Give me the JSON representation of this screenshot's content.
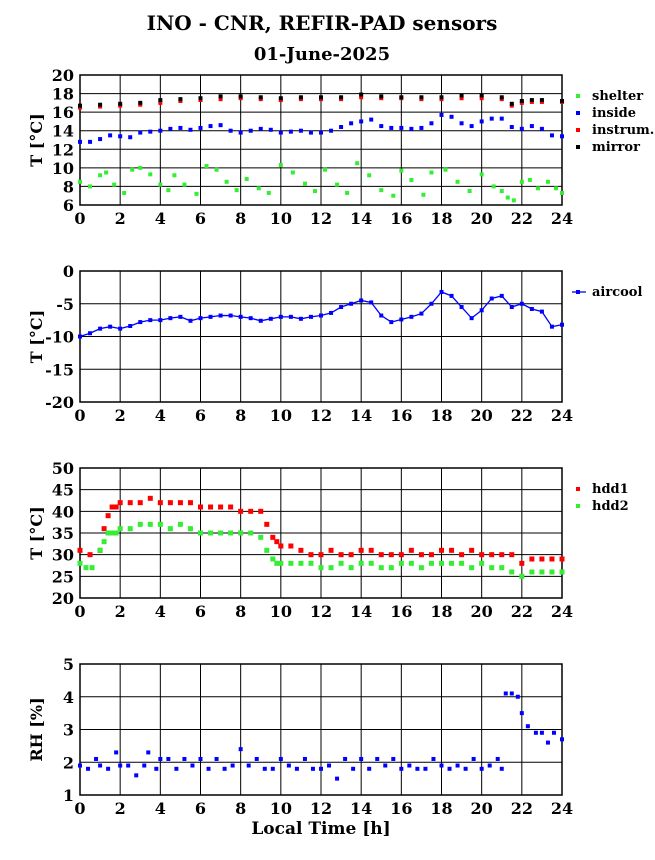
{
  "header": {
    "title": "INO - CNR, REFIR-PAD sensors",
    "subtitle": "01-June-2025"
  },
  "chart_data": [
    {
      "type": "scatter",
      "ylabel": "T [°C]",
      "xlabel": "",
      "xlim": [
        0,
        24
      ],
      "ylim": [
        6,
        20
      ],
      "xticks": [
        "0",
        "2",
        "4",
        "6",
        "8",
        "10",
        "12",
        "14",
        "16",
        "18",
        "20",
        "22",
        "24"
      ],
      "yticks": [
        "6",
        "8",
        "10",
        "12",
        "14",
        "16",
        "18",
        "20"
      ],
      "grid": true,
      "legend": "right",
      "series": [
        {
          "name": "shelter",
          "color": "#33ee33",
          "x": [
            0,
            0.5,
            1,
            1.3,
            1.7,
            2.2,
            2.6,
            3,
            3.5,
            4,
            4.4,
            4.7,
            5.2,
            5.8,
            6.3,
            6.8,
            7.3,
            7.8,
            8.3,
            8.9,
            9.4,
            10,
            10.6,
            11.2,
            11.7,
            12.2,
            12.8,
            13.3,
            13.8,
            14.4,
            15,
            15.6,
            16,
            16.5,
            17.1,
            17.5,
            18.2,
            18.8,
            19.4,
            20,
            20.6,
            21,
            21.3,
            21.6,
            22,
            22.4,
            22.8,
            23.3,
            23.7,
            24
          ],
          "y": [
            8.5,
            8,
            9.2,
            9.5,
            8.2,
            7.3,
            9.8,
            10,
            9.3,
            8.2,
            7.6,
            9.2,
            8.2,
            7.2,
            10.2,
            9.8,
            8.5,
            7.6,
            8.8,
            7.8,
            7.3,
            10.3,
            9.5,
            8.3,
            7.5,
            9.8,
            8.2,
            7.3,
            10.5,
            9.2,
            7.6,
            7,
            9.7,
            8.7,
            7.1,
            9.5,
            9.8,
            8.5,
            7.5,
            9.3,
            8,
            7.5,
            6.8,
            6.5,
            8.5,
            8.7,
            7.8,
            8.5,
            7.8,
            7.3
          ]
        },
        {
          "name": "inside",
          "color": "#0000ff",
          "x": [
            0,
            0.5,
            1,
            1.5,
            2,
            2.5,
            3,
            3.5,
            4,
            4.5,
            5,
            5.5,
            6,
            6.5,
            7,
            7.5,
            8,
            8.5,
            9,
            9.5,
            10,
            10.5,
            11,
            11.5,
            12,
            12.5,
            13,
            13.5,
            14,
            14.5,
            15,
            15.5,
            16,
            16.5,
            17,
            17.5,
            18,
            18.5,
            19,
            19.5,
            20,
            20.5,
            21,
            21.5,
            22,
            22.5,
            23,
            23.5,
            24
          ],
          "y": [
            12.8,
            12.8,
            13.1,
            13.5,
            13.4,
            13.3,
            13.8,
            13.9,
            14,
            14.2,
            14.3,
            14.1,
            14.3,
            14.5,
            14.6,
            14,
            13.8,
            14,
            14.2,
            14.1,
            13.8,
            13.9,
            14,
            13.8,
            13.8,
            14,
            14.4,
            14.8,
            15,
            15.2,
            14.5,
            14.3,
            14.3,
            14.2,
            14.3,
            14.8,
            15.7,
            15.5,
            14.8,
            14.5,
            15,
            15.3,
            15.3,
            14.4,
            14.2,
            14.5,
            14.2,
            13.5,
            13.4
          ]
        },
        {
          "name": "instrum.",
          "color": "#ff0000",
          "x": [
            0,
            1,
            2,
            3,
            4,
            5,
            6,
            7,
            8,
            9,
            10,
            11,
            12,
            13,
            14,
            15,
            16,
            17,
            18,
            19,
            20,
            21,
            21.5,
            22,
            22.5,
            23,
            24
          ],
          "y": [
            16.5,
            16.6,
            16.7,
            16.8,
            17,
            17.2,
            17.3,
            17.4,
            17.5,
            17.4,
            17.3,
            17.4,
            17.4,
            17.4,
            17.6,
            17.5,
            17.5,
            17.4,
            17.4,
            17.5,
            17.5,
            17.4,
            16.7,
            17,
            17.1,
            17.1,
            17.1
          ]
        },
        {
          "name": "mirror",
          "color": "#000000",
          "x": [
            0,
            1,
            2,
            3,
            4,
            5,
            6,
            7,
            8,
            9,
            10,
            11,
            12,
            13,
            14,
            15,
            16,
            17,
            18,
            19,
            20,
            21,
            21.5,
            22,
            22.5,
            23,
            24
          ],
          "y": [
            16.7,
            16.8,
            16.9,
            17,
            17.3,
            17.4,
            17.5,
            17.7,
            17.7,
            17.6,
            17.5,
            17.6,
            17.6,
            17.6,
            17.9,
            17.7,
            17.6,
            17.6,
            17.6,
            17.8,
            17.8,
            17.6,
            16.9,
            17.2,
            17.3,
            17.3,
            17.2
          ]
        }
      ]
    },
    {
      "type": "line",
      "ylabel": "T [°C]",
      "xlabel": "",
      "xlim": [
        0,
        24
      ],
      "ylim": [
        -20,
        0
      ],
      "xticks": [
        "0",
        "2",
        "4",
        "6",
        "8",
        "10",
        "12",
        "14",
        "16",
        "18",
        "20",
        "22",
        "24"
      ],
      "yticks": [
        "-20",
        "-15",
        "-10",
        "-5",
        "0"
      ],
      "grid": true,
      "legend": "right",
      "series": [
        {
          "name": "aircool",
          "color": "#0000ff",
          "x": [
            0,
            0.5,
            1,
            1.5,
            2,
            2.5,
            3,
            3.5,
            4,
            4.5,
            5,
            5.5,
            6,
            6.5,
            7,
            7.5,
            8,
            8.5,
            9,
            9.5,
            10,
            10.5,
            11,
            11.5,
            12,
            12.5,
            13,
            13.5,
            14,
            14.5,
            15,
            15.5,
            16,
            16.5,
            17,
            17.5,
            18,
            18.5,
            19,
            19.5,
            20,
            20.5,
            21,
            21.5,
            22,
            22.5,
            23,
            23.5,
            24
          ],
          "y": [
            -10,
            -9.5,
            -8.8,
            -8.5,
            -8.8,
            -8.4,
            -7.8,
            -7.5,
            -7.5,
            -7.2,
            -7,
            -7.6,
            -7.2,
            -7,
            -6.8,
            -6.8,
            -7,
            -7.2,
            -7.6,
            -7.3,
            -7,
            -7,
            -7.3,
            -7,
            -6.8,
            -6.4,
            -5.5,
            -5,
            -4.5,
            -4.8,
            -6.8,
            -7.8,
            -7.4,
            -7,
            -6.5,
            -5,
            -3.2,
            -3.8,
            -5.5,
            -7.2,
            -6,
            -4.2,
            -3.8,
            -5.5,
            -5,
            -5.8,
            -6.2,
            -8.5,
            -8.2
          ]
        }
      ]
    },
    {
      "type": "scatter",
      "ylabel": "T [°C]",
      "xlabel": "",
      "xlim": [
        0,
        24
      ],
      "ylim": [
        20,
        50
      ],
      "xticks": [
        "0",
        "2",
        "4",
        "6",
        "8",
        "10",
        "12",
        "14",
        "16",
        "18",
        "20",
        "22",
        "24"
      ],
      "yticks": [
        "20",
        "25",
        "30",
        "35",
        "40",
        "45",
        "50"
      ],
      "grid": true,
      "legend": "right",
      "series": [
        {
          "name": "hdd1",
          "color": "#ff0000",
          "x": [
            0,
            0.5,
            1,
            1.2,
            1.4,
            1.6,
            1.8,
            2,
            2.5,
            3,
            3.5,
            4,
            4.5,
            5,
            5.5,
            6,
            6.5,
            7,
            7.5,
            8,
            8.5,
            9,
            9.3,
            9.6,
            9.8,
            10,
            10.5,
            11,
            11.5,
            12,
            12.5,
            13,
            13.5,
            14,
            14.5,
            15,
            15.5,
            16,
            16.5,
            17,
            17.5,
            18,
            18.5,
            19,
            19.5,
            20,
            20.5,
            21,
            21.5,
            22,
            22.5,
            23,
            23.5,
            24
          ],
          "y": [
            31,
            30,
            31,
            36,
            39,
            41,
            41,
            42,
            42,
            42,
            43,
            42,
            42,
            42,
            42,
            41,
            41,
            41,
            41,
            40,
            40,
            40,
            37,
            34,
            33,
            32,
            32,
            31,
            30,
            30,
            31,
            30,
            30,
            31,
            31,
            30,
            30,
            30,
            31,
            30,
            30,
            31,
            31,
            30,
            31,
            30,
            30,
            30,
            30,
            28,
            29,
            29,
            29,
            29
          ]
        },
        {
          "name": "hdd2",
          "color": "#33ee33",
          "x": [
            0,
            0.3,
            0.6,
            1,
            1.2,
            1.4,
            1.6,
            1.8,
            2,
            2.5,
            3,
            3.5,
            4,
            4.5,
            5,
            5.5,
            6,
            6.5,
            7,
            7.5,
            8,
            8.5,
            9,
            9.3,
            9.6,
            9.8,
            10,
            10.5,
            11,
            11.5,
            12,
            12.5,
            13,
            13.5,
            14,
            14.5,
            15,
            15.5,
            16,
            16.5,
            17,
            17.5,
            18,
            18.5,
            19,
            19.5,
            20,
            20.5,
            21,
            21.5,
            22,
            22.5,
            23,
            23.5,
            24
          ],
          "y": [
            28,
            27,
            27,
            31,
            33,
            35,
            35,
            35,
            36,
            36,
            37,
            37,
            37,
            36,
            37,
            36,
            35,
            35,
            35,
            35,
            35,
            35,
            34,
            31,
            29,
            28,
            28,
            28,
            28,
            28,
            27,
            27,
            28,
            27,
            28,
            28,
            27,
            27,
            28,
            28,
            27,
            28,
            28,
            28,
            28,
            27,
            28,
            27,
            27,
            26,
            25,
            26,
            26,
            26,
            26
          ]
        }
      ]
    },
    {
      "type": "scatter",
      "ylabel": "RH [%]",
      "xlabel": "Local Time [h]",
      "xlim": [
        0,
        24
      ],
      "ylim": [
        1,
        5
      ],
      "xticks": [
        "0",
        "2",
        "4",
        "6",
        "8",
        "10",
        "12",
        "14",
        "16",
        "18",
        "20",
        "22",
        "24"
      ],
      "yticks": [
        "1",
        "2",
        "3",
        "4",
        "5"
      ],
      "grid": true,
      "legend": "none",
      "series": [
        {
          "name": "",
          "color": "#0000ff",
          "x": [
            0,
            0.4,
            0.8,
            1,
            1.4,
            1.8,
            2,
            2.4,
            2.8,
            3.2,
            3.4,
            3.8,
            4,
            4.4,
            4.8,
            5.2,
            5.6,
            6,
            6.4,
            6.8,
            7.2,
            7.6,
            8,
            8.4,
            8.8,
            9.2,
            9.6,
            10,
            10.4,
            10.8,
            11.2,
            11.6,
            12,
            12.4,
            12.8,
            13.2,
            13.6,
            14,
            14.4,
            14.8,
            15.2,
            15.6,
            16,
            16.4,
            16.8,
            17.2,
            17.6,
            18,
            18.4,
            18.8,
            19.2,
            19.6,
            20,
            20.4,
            20.8,
            21,
            21.2,
            21.5,
            21.8,
            22,
            22.3,
            22.7,
            23,
            23.3,
            23.6,
            24
          ],
          "y": [
            1.9,
            1.8,
            2.1,
            1.9,
            1.8,
            2.3,
            1.9,
            1.9,
            1.6,
            1.9,
            2.3,
            1.8,
            2.1,
            2.1,
            1.8,
            2.1,
            1.9,
            2.1,
            1.8,
            2.1,
            1.8,
            1.9,
            2.4,
            1.9,
            2.1,
            1.8,
            1.8,
            2.1,
            1.9,
            1.8,
            2.1,
            1.8,
            1.8,
            1.9,
            1.5,
            2.1,
            1.8,
            2.1,
            1.8,
            2.1,
            1.9,
            2.1,
            1.8,
            1.9,
            1.8,
            1.8,
            2.1,
            1.9,
            1.8,
            1.9,
            1.8,
            2.1,
            1.8,
            1.9,
            2.1,
            1.8,
            4.1,
            4.1,
            4.0,
            3.5,
            3.1,
            2.9,
            2.9,
            2.6,
            2.9,
            2.7
          ]
        }
      ]
    }
  ]
}
